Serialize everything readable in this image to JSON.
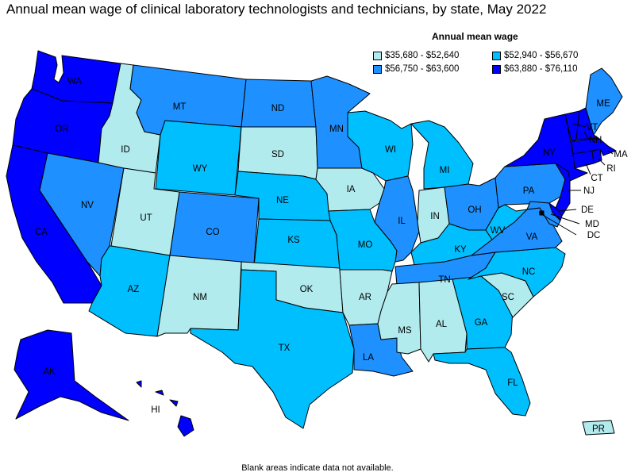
{
  "title": "Annual mean wage of clinical laboratory technologists and technicians, by state, May 2022",
  "legend": {
    "title": "Annual mean wage",
    "items": [
      {
        "label": "$35,680 - $52,640",
        "color": "#b2ebee"
      },
      {
        "label": "$52,940 - $56,670",
        "color": "#00bfff"
      },
      {
        "label": "$56,750 - $63,600",
        "color": "#1e90ff"
      },
      {
        "label": "$63,880 - $76,110",
        "color": "#0000ff"
      }
    ]
  },
  "footnote": "Blank areas indicate data not available.",
  "states": {
    "WA": {
      "label": "WA",
      "tier": 3
    },
    "OR": {
      "label": "OR",
      "tier": 3
    },
    "CA": {
      "label": "CA",
      "tier": 3
    },
    "NV": {
      "label": "NV",
      "tier": 2
    },
    "ID": {
      "label": "ID",
      "tier": 0
    },
    "MT": {
      "label": "MT",
      "tier": 2
    },
    "WY": {
      "label": "WY",
      "tier": 1
    },
    "UT": {
      "label": "UT",
      "tier": 0
    },
    "AZ": {
      "label": "AZ",
      "tier": 1
    },
    "CO": {
      "label": "CO",
      "tier": 2
    },
    "NM": {
      "label": "NM",
      "tier": 0
    },
    "ND": {
      "label": "ND",
      "tier": 2
    },
    "SD": {
      "label": "SD",
      "tier": 0
    },
    "NE": {
      "label": "NE",
      "tier": 1
    },
    "KS": {
      "label": "KS",
      "tier": 1
    },
    "OK": {
      "label": "OK",
      "tier": 0
    },
    "TX": {
      "label": "TX",
      "tier": 1
    },
    "MN": {
      "label": "MN",
      "tier": 2
    },
    "IA": {
      "label": "IA",
      "tier": 0
    },
    "MO": {
      "label": "MO",
      "tier": 1
    },
    "AR": {
      "label": "AR",
      "tier": 0
    },
    "LA": {
      "label": "LA",
      "tier": 2
    },
    "WI": {
      "label": "WI",
      "tier": 1
    },
    "IL": {
      "label": "IL",
      "tier": 2
    },
    "MI": {
      "label": "MI",
      "tier": 1
    },
    "IN": {
      "label": "IN",
      "tier": 0
    },
    "OH": {
      "label": "OH",
      "tier": 2
    },
    "KY": {
      "label": "KY",
      "tier": 1
    },
    "TN": {
      "label": "TN",
      "tier": 2
    },
    "MS": {
      "label": "MS",
      "tier": 0
    },
    "AL": {
      "label": "AL",
      "tier": 0
    },
    "GA": {
      "label": "GA",
      "tier": 1
    },
    "FL": {
      "label": "FL",
      "tier": 1
    },
    "SC": {
      "label": "SC",
      "tier": 0
    },
    "NC": {
      "label": "NC",
      "tier": 1
    },
    "VA": {
      "label": "VA",
      "tier": 2
    },
    "WV": {
      "label": "WV",
      "tier": 1
    },
    "PA": {
      "label": "PA",
      "tier": 2
    },
    "NY": {
      "label": "NY",
      "tier": 3
    },
    "ME": {
      "label": "ME",
      "tier": 2
    },
    "VT": {
      "label": "VT",
      "tier": 3
    },
    "NH": {
      "label": "NH",
      "tier": 3
    },
    "MA": {
      "label": "MA",
      "tier": 3
    },
    "RI": {
      "label": "RI",
      "tier": 3
    },
    "CT": {
      "label": "CT",
      "tier": 3
    },
    "NJ": {
      "label": "NJ",
      "tier": 3
    },
    "DE": {
      "label": "DE",
      "tier": 3
    },
    "MD": {
      "label": "MD",
      "tier": 2
    },
    "DC": {
      "label": "DC",
      "tier": 3
    },
    "AK": {
      "label": "AK",
      "tier": 3
    },
    "HI": {
      "label": "HI",
      "tier": 3
    },
    "PR": {
      "label": "PR",
      "tier": 0
    }
  }
}
